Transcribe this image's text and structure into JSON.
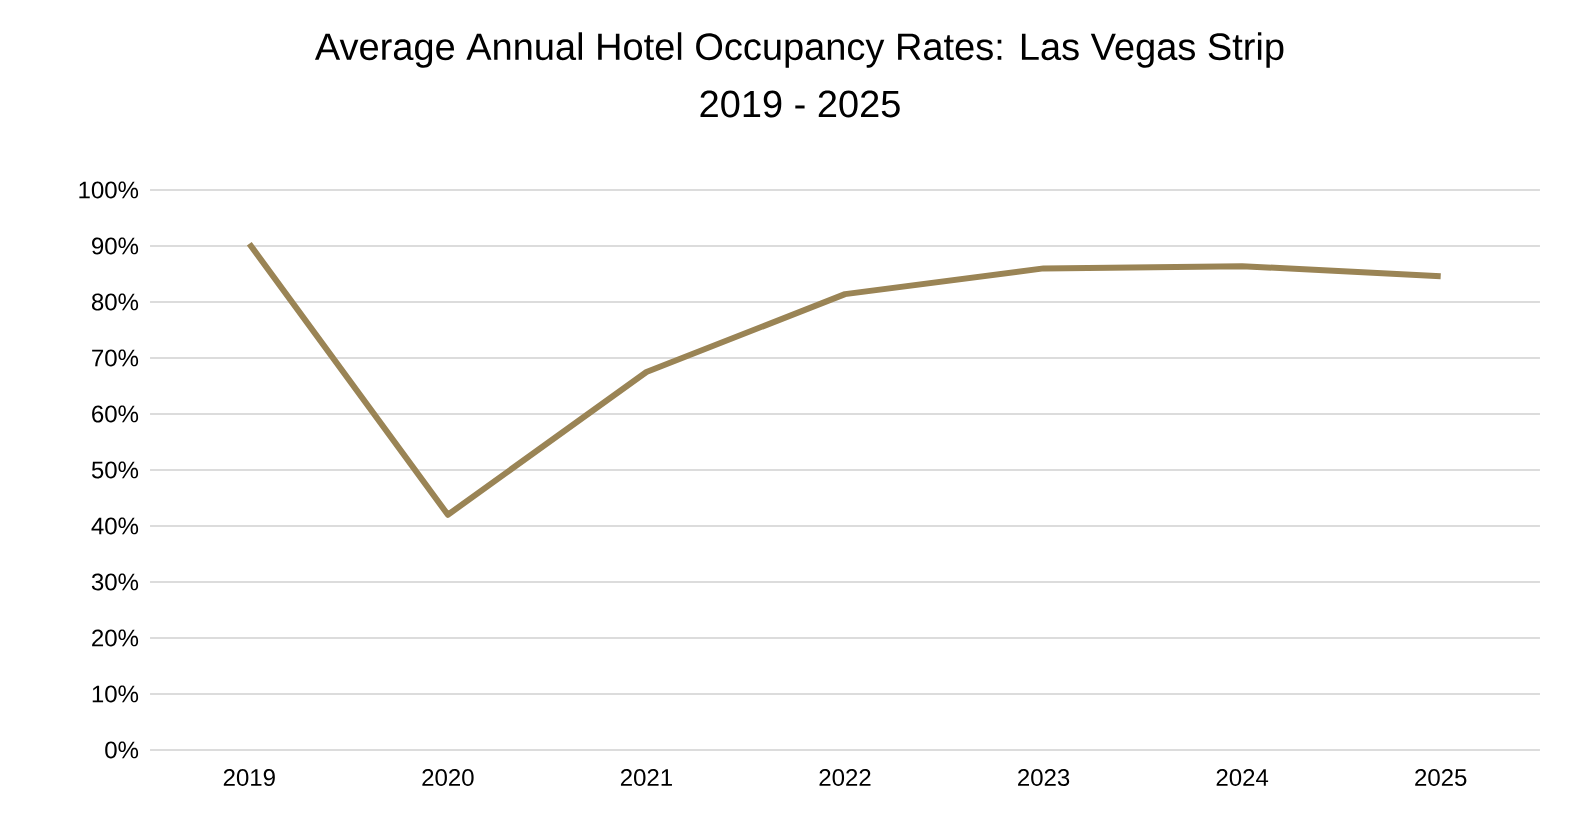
{
  "chart_data": {
    "type": "line",
    "title": "Average Annual Hotel Occupancy Rates: Las Vegas Strip",
    "subtitle": "2019 - 2025",
    "categories": [
      "2019",
      "2020",
      "2021",
      "2022",
      "2023",
      "2024",
      "2025"
    ],
    "series": [
      {
        "color": "#9a8455",
        "values": [
          90.4,
          42,
          67.5,
          81.4,
          86,
          86.4,
          84.6
        ]
      }
    ],
    "ylim": [
      0,
      100
    ],
    "yticks": [
      {
        "value": 0,
        "label": "0%"
      },
      {
        "value": 10,
        "label": "10%"
      },
      {
        "value": 20,
        "label": "20%"
      },
      {
        "value": 30,
        "label": "30%"
      },
      {
        "value": 40,
        "label": "40%"
      },
      {
        "value": 50,
        "label": "50%"
      },
      {
        "value": 60,
        "label": "60%"
      },
      {
        "value": 70,
        "label": "70%"
      },
      {
        "value": 80,
        "label": "80%"
      },
      {
        "value": 90,
        "label": "90%"
      },
      {
        "value": 100,
        "label": "100%"
      }
    ],
    "grid": "y",
    "marker": "none",
    "line_style": "solid"
  }
}
